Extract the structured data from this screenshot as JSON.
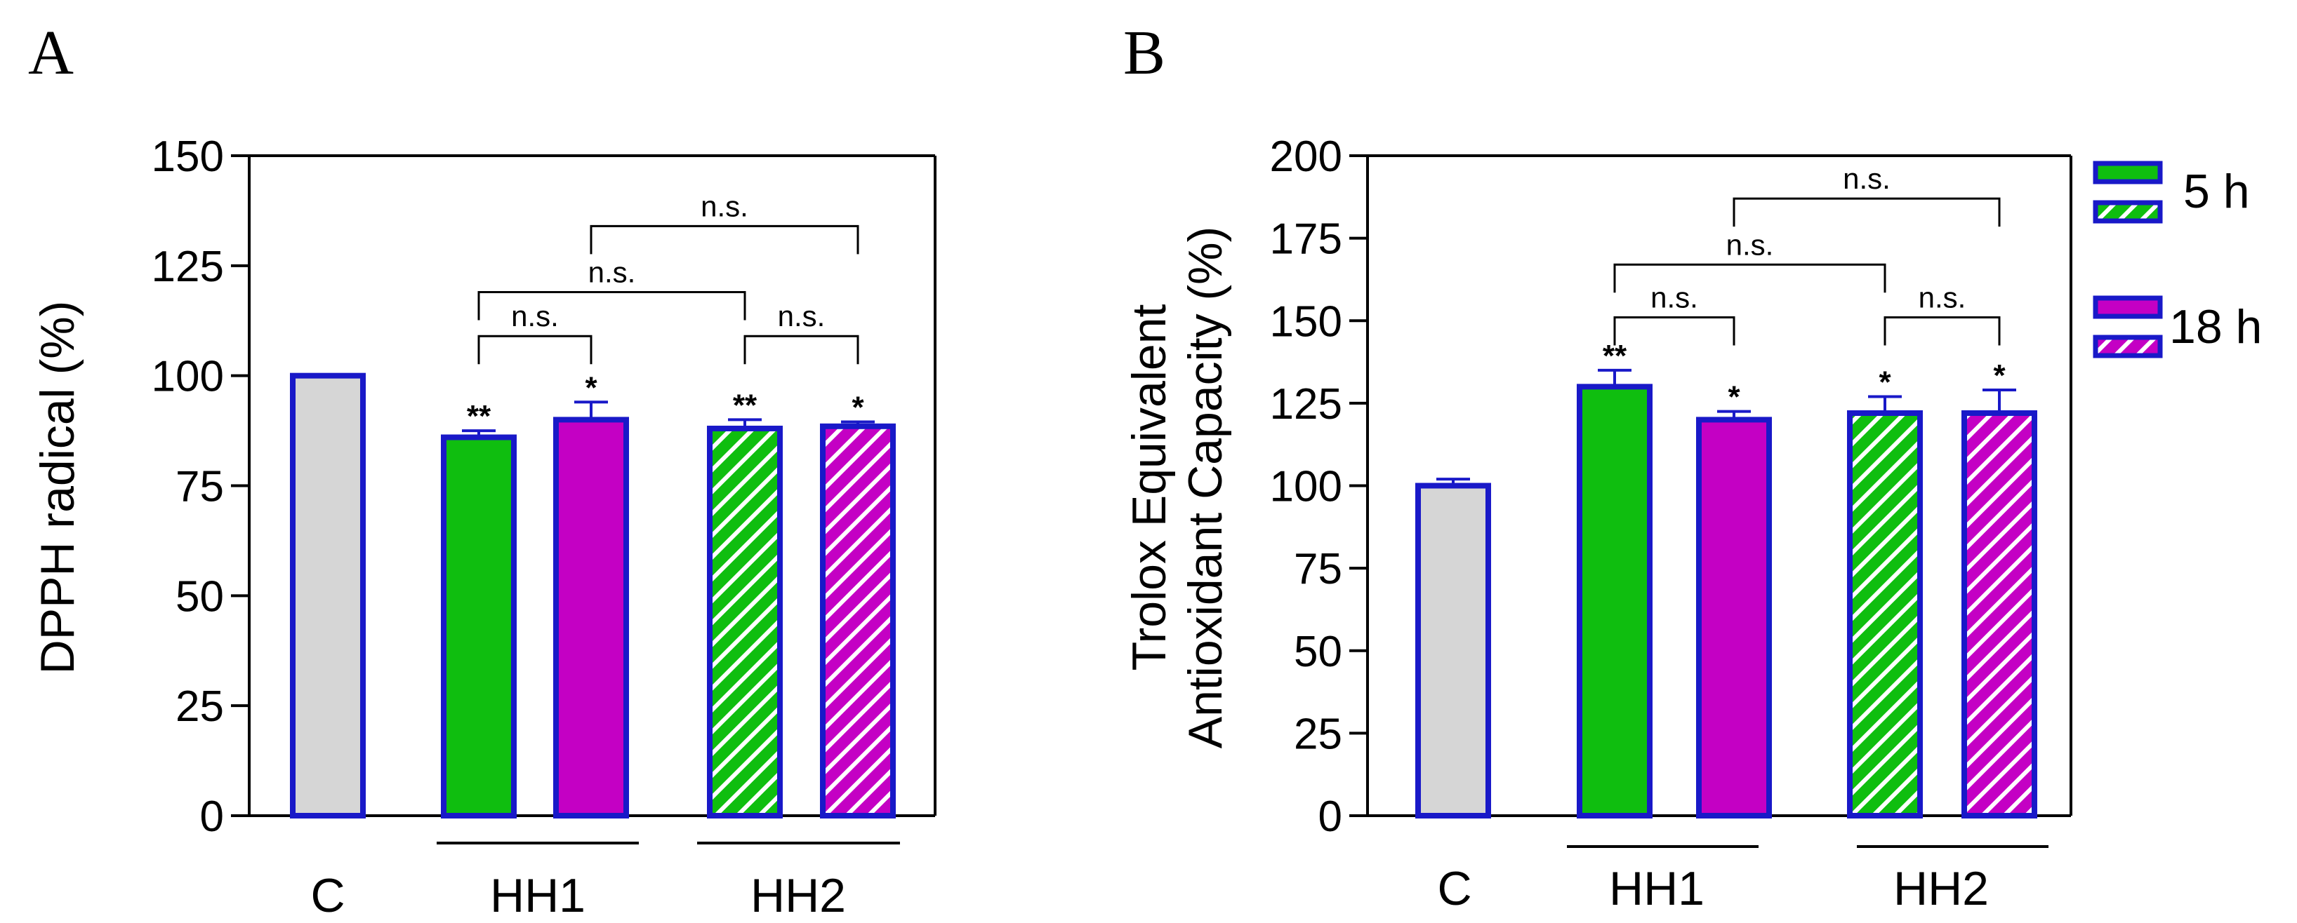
{
  "panels": [
    {
      "letter": "A",
      "chart_data": {
        "type": "bar",
        "ylabel": "DPPH radical (%)",
        "ylim": [
          0,
          150
        ],
        "yticks": [
          0,
          25,
          50,
          75,
          100,
          125,
          150
        ],
        "groups": [
          "C",
          "HH1",
          "HH2"
        ],
        "bars": [
          {
            "id": "C",
            "group": "C",
            "fill": "grey",
            "pattern": "solid",
            "value": 100,
            "err": 0,
            "sig": ""
          },
          {
            "id": "HH1-5h",
            "group": "HH1",
            "fill": "green",
            "pattern": "solid",
            "value": 86,
            "err": 1.5,
            "sig": "**"
          },
          {
            "id": "HH1-18h",
            "group": "HH1",
            "fill": "magenta",
            "pattern": "solid",
            "value": 90,
            "err": 4,
            "sig": "*"
          },
          {
            "id": "HH2-5h",
            "group": "HH2",
            "fill": "green",
            "pattern": "hatch",
            "value": 88,
            "err": 2,
            "sig": "**"
          },
          {
            "id": "HH2-18h",
            "group": "HH2",
            "fill": "magenta",
            "pattern": "hatch",
            "value": 88.5,
            "err": 1,
            "sig": "*"
          }
        ],
        "comparisons": [
          {
            "from": 1,
            "to": 2,
            "level": 109,
            "label": "n.s."
          },
          {
            "from": 3,
            "to": 4,
            "level": 109,
            "label": "n.s."
          },
          {
            "from": 1,
            "to": 3,
            "level": 119,
            "label": "n.s."
          },
          {
            "from": 2,
            "to": 4,
            "level": 134,
            "label": "n.s."
          }
        ]
      }
    },
    {
      "letter": "B",
      "chart_data": {
        "type": "bar",
        "ylabel_line1": "Trolox Equivalent",
        "ylabel_line2": "Antioxidant Capacity (%)",
        "ylim": [
          0,
          200
        ],
        "yticks": [
          0,
          25,
          50,
          75,
          100,
          125,
          150,
          175,
          200
        ],
        "groups": [
          "C",
          "HH1",
          "HH2"
        ],
        "bars": [
          {
            "id": "C",
            "group": "C",
            "fill": "grey",
            "pattern": "solid",
            "value": 100,
            "err": 2,
            "sig": ""
          },
          {
            "id": "HH1-5h",
            "group": "HH1",
            "fill": "green",
            "pattern": "solid",
            "value": 130,
            "err": 5,
            "sig": "**"
          },
          {
            "id": "HH1-18h",
            "group": "HH1",
            "fill": "magenta",
            "pattern": "solid",
            "value": 120,
            "err": 2.5,
            "sig": "*"
          },
          {
            "id": "HH2-5h",
            "group": "HH2",
            "fill": "green",
            "pattern": "hatch",
            "value": 122,
            "err": 5,
            "sig": "*"
          },
          {
            "id": "HH2-18h",
            "group": "HH2",
            "fill": "magenta",
            "pattern": "hatch",
            "value": 122,
            "err": 7,
            "sig": "*"
          }
        ],
        "comparisons": [
          {
            "from": 1,
            "to": 2,
            "level": 151,
            "label": "n.s."
          },
          {
            "from": 3,
            "to": 4,
            "level": 151,
            "label": "n.s."
          },
          {
            "from": 1,
            "to": 3,
            "level": 167,
            "label": "n.s."
          },
          {
            "from": 2,
            "to": 4,
            "level": 187,
            "label": "n.s."
          }
        ]
      }
    }
  ],
  "legend": {
    "items": [
      {
        "label": "5 h"
      },
      {
        "label": "18 h"
      }
    ]
  },
  "colors": {
    "outline": "#1919c8",
    "grey": "#d6d6d6",
    "green": "#0fbe0f",
    "magenta": "#c400c4",
    "axis": "#000000",
    "bracket": "#000000"
  }
}
